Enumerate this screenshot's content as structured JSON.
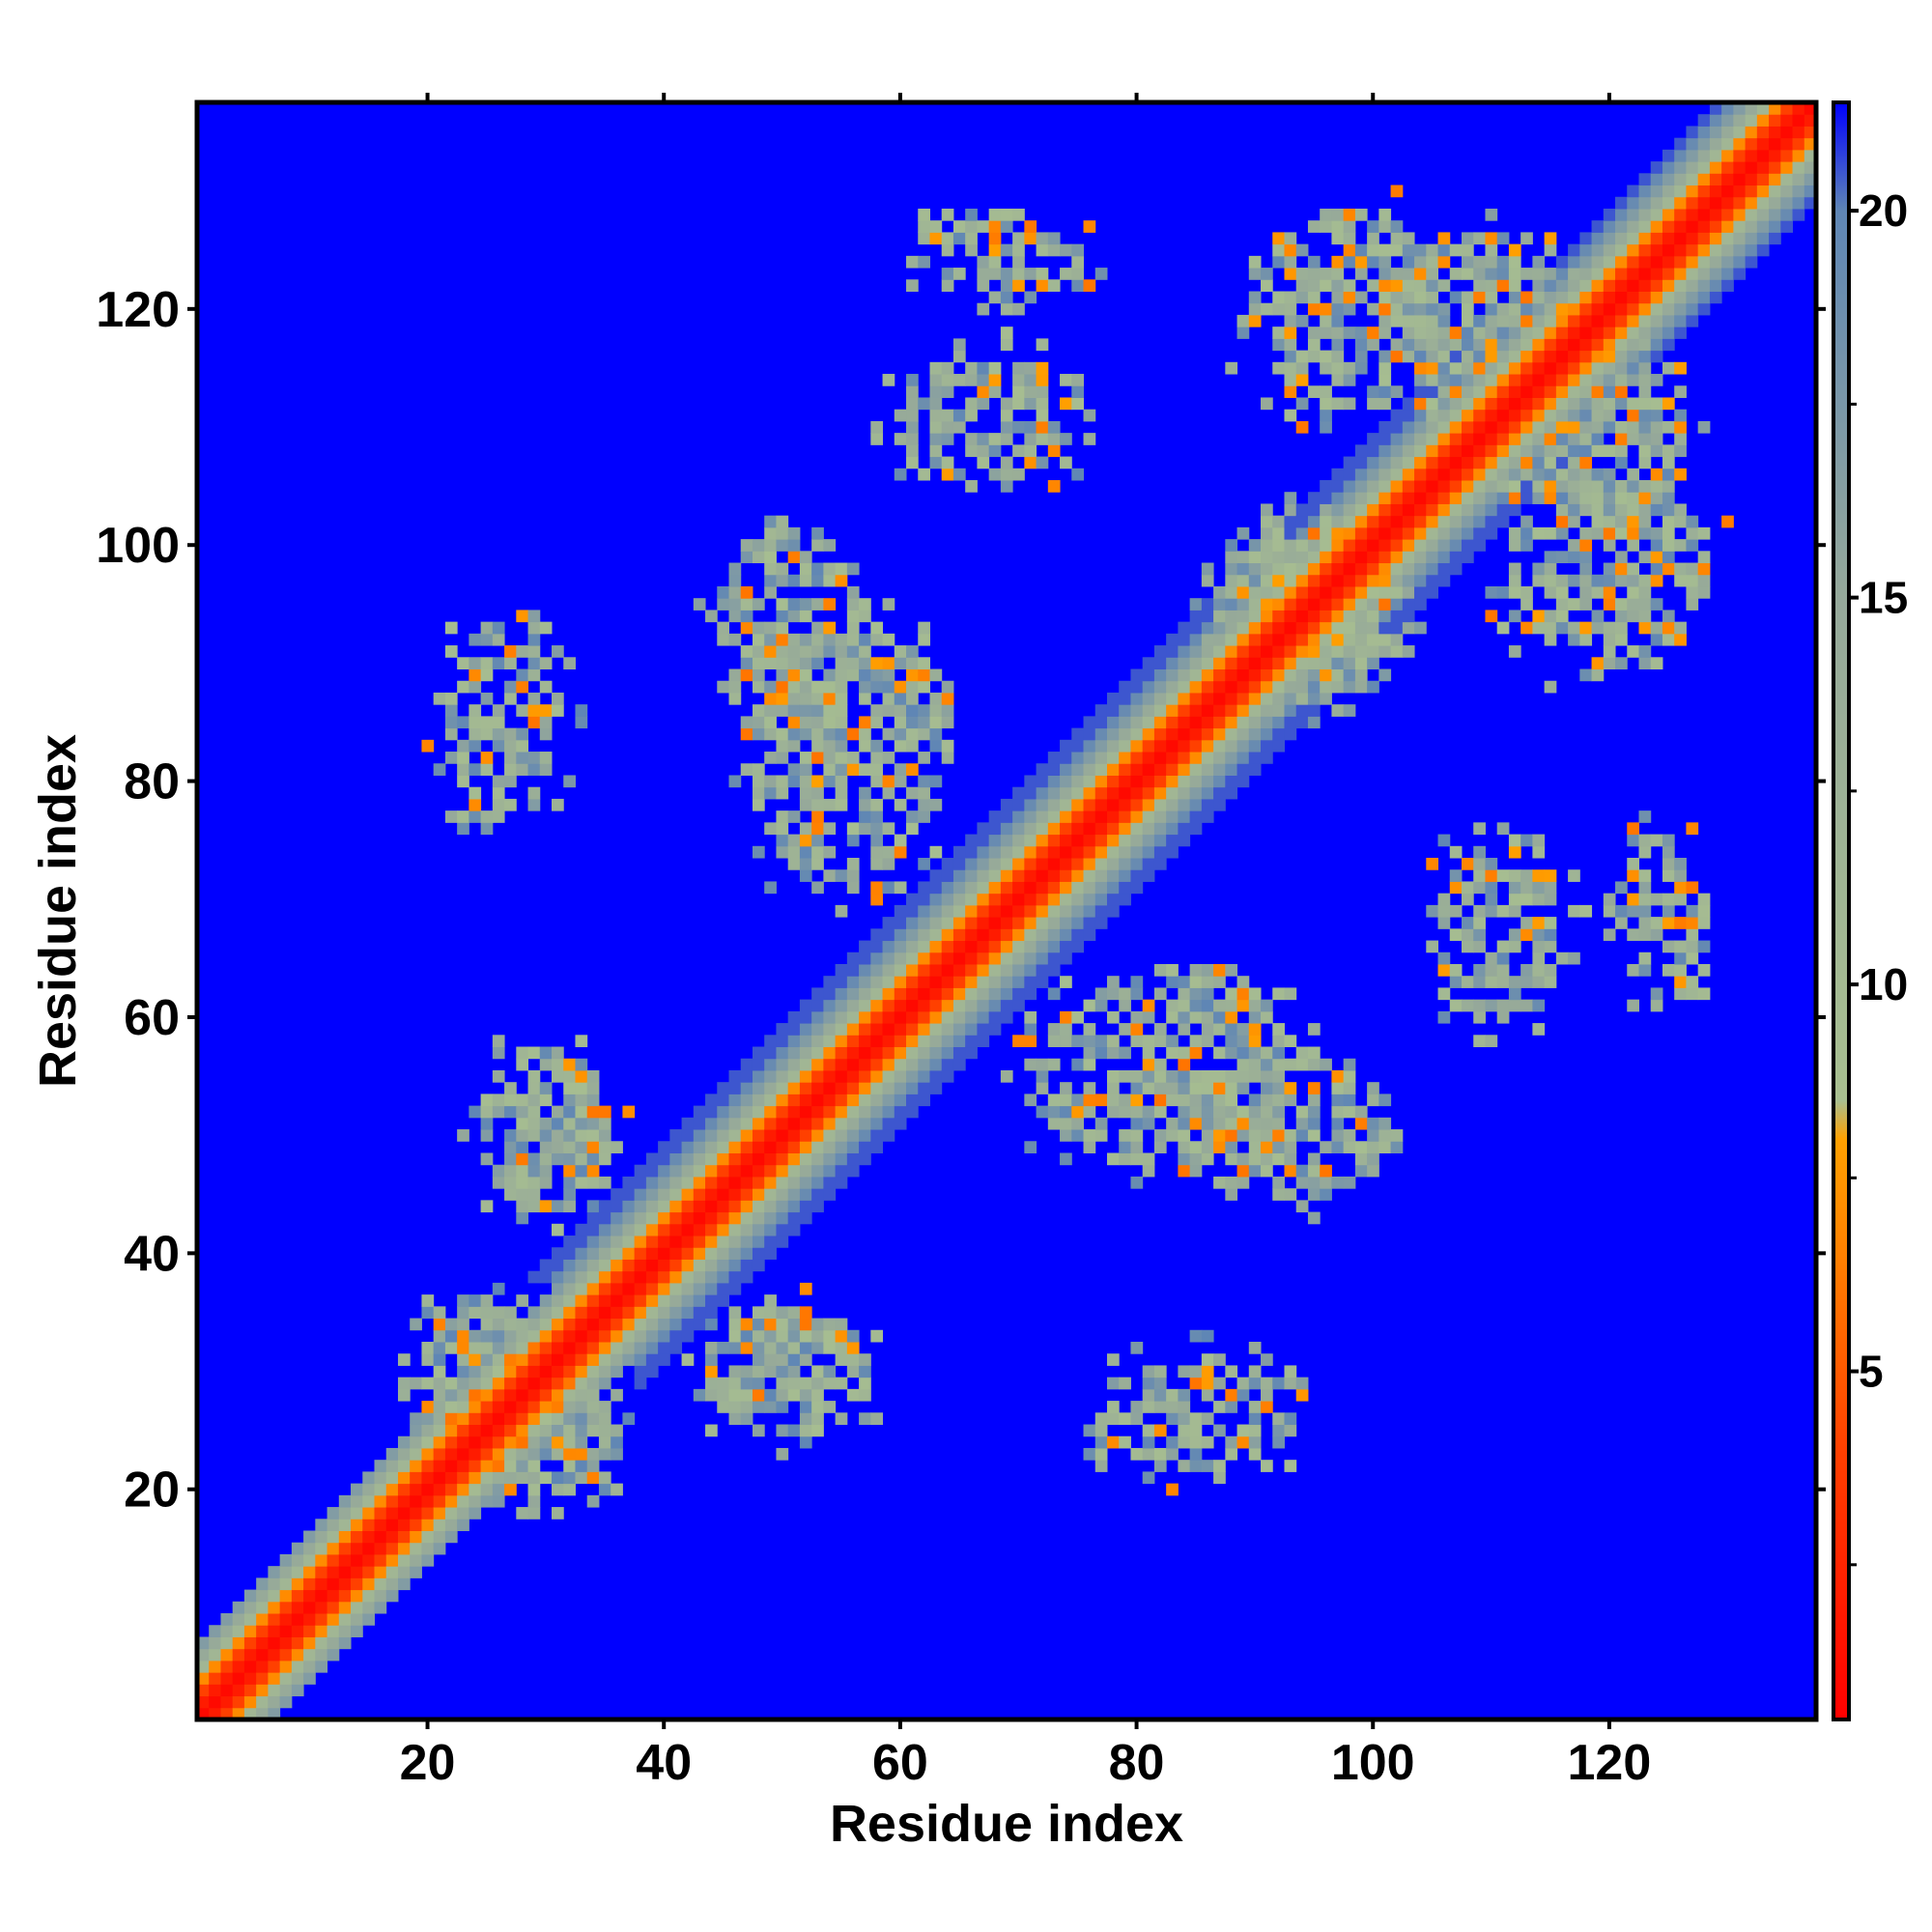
{
  "chart_data": {
    "type": "heatmap",
    "title": "",
    "xlabel": "Residue index",
    "ylabel": "Residue index",
    "n_residues": 137,
    "xlim": [
      0.5,
      137.5
    ],
    "ylim": [
      0.5,
      137.5
    ],
    "x_ticks": [
      "20",
      "40",
      "60",
      "80",
      "100",
      "120"
    ],
    "y_ticks": [
      "20",
      "40",
      "60",
      "80",
      "100",
      "120"
    ],
    "colorbar": {
      "range": [
        0.5,
        21.4
      ],
      "ticks": [
        "5",
        "10",
        "15",
        "20"
      ],
      "stops": [
        {
          "value": 0.5,
          "color": "#ff0000"
        },
        {
          "value": 4.0,
          "color": "#ff4000"
        },
        {
          "value": 6.5,
          "color": "#ff8000"
        },
        {
          "value": 8.0,
          "color": "#ffa000"
        },
        {
          "value": 8.5,
          "color": "#a8bf90"
        },
        {
          "value": 15.0,
          "color": "#95a89a"
        },
        {
          "value": 20.0,
          "color": "#5f86b5"
        },
        {
          "value": 21.4,
          "color": "#0000ff"
        }
      ]
    },
    "background_value": 21,
    "background_color": "#0000ff",
    "diagonal_band": {
      "segments": [
        {
          "i_range": [
            1,
            37
          ],
          "half_width": 6
        },
        {
          "i_range": [
            37,
            107
          ],
          "half_width": 9
        },
        {
          "i_range": [
            107,
            137
          ],
          "half_width": 8
        }
      ],
      "core_values": [
        1,
        2,
        4,
        7,
        11,
        14,
        16,
        18,
        19,
        20
      ]
    },
    "contact_regions": [
      {
        "label": "residues 19-29 x 22-36",
        "i_range": [
          19,
          29
        ],
        "j_range": [
          22,
          36
        ],
        "density": 0.75,
        "value_range": [
          6,
          20
        ]
      },
      {
        "label": "residues 25-35 x 44-57",
        "i_range": [
          25,
          35
        ],
        "j_range": [
          44,
          57
        ],
        "density": 0.75,
        "value_range": [
          6,
          20
        ]
      },
      {
        "label": "residues 22-26 x 27-30",
        "i_range": [
          22,
          26
        ],
        "j_range": [
          27,
          30
        ],
        "density": 0.8,
        "value_range": [
          6,
          20
        ]
      },
      {
        "label": "residues 77-93 x 22-31",
        "i_range": [
          77,
          93
        ],
        "j_range": [
          22,
          31
        ],
        "density": 0.6,
        "value_range": [
          7,
          20
        ]
      },
      {
        "label": "residues 86-101 x 45-56",
        "i_range": [
          86,
          101
        ],
        "j_range": [
          45,
          56
        ],
        "density": 0.75,
        "value_range": [
          6,
          20
        ]
      },
      {
        "label": "residues 48-62 x 71-93",
        "i_range": [
          48,
          62
        ],
        "j_range": [
          71,
          93
        ],
        "density": 0.65,
        "value_range": [
          6,
          20
        ]
      },
      {
        "label": "residues 57-64 x 78-91",
        "i_range": [
          57,
          64
        ],
        "j_range": [
          78,
          91
        ],
        "density": 0.75,
        "value_range": [
          5,
          20
        ]
      },
      {
        "label": "residues 60-74 x 105-116",
        "i_range": [
          60,
          74
        ],
        "j_range": [
          105,
          116
        ],
        "density": 0.65,
        "value_range": [
          6,
          20
        ]
      },
      {
        "label": "residues 62-75 x 121-128",
        "i_range": [
          62,
          75
        ],
        "j_range": [
          121,
          128
        ],
        "density": 0.6,
        "value_range": [
          6,
          20
        ]
      },
      {
        "label": "residues 90-106 x 112-128",
        "i_range": [
          90,
          106
        ],
        "j_range": [
          112,
          128
        ],
        "density": 0.65,
        "value_range": [
          6,
          20
        ]
      },
      {
        "label": "residues 101-116 x 113-126",
        "i_range": [
          101,
          116
        ],
        "j_range": [
          113,
          126
        ],
        "density": 0.75,
        "value_range": [
          5,
          20
        ]
      },
      {
        "label": "residues 87-103 x 90-100",
        "i_range": [
          87,
          103
        ],
        "j_range": [
          90,
          100
        ],
        "density": 0.7,
        "value_range": [
          5,
          20
        ]
      }
    ]
  }
}
